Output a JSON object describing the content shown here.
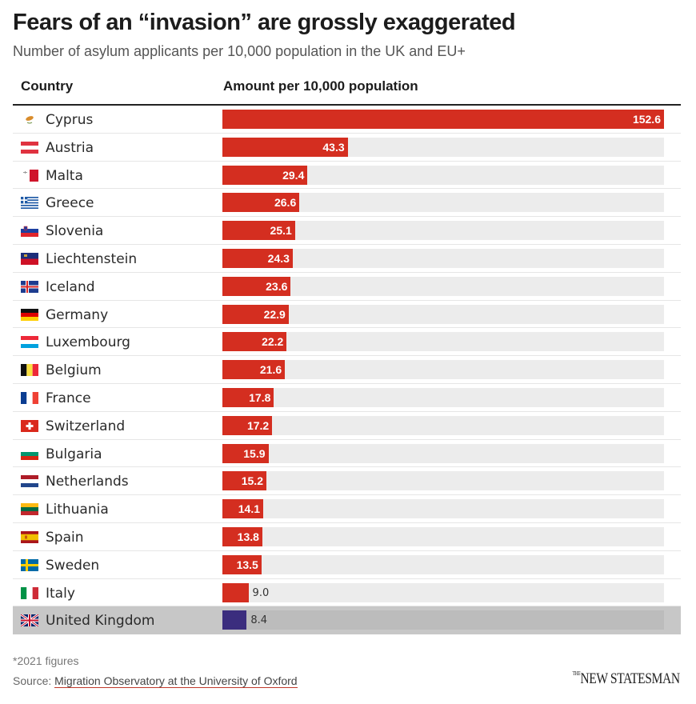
{
  "title": "Fears of an “invasion” are grossly exaggerated",
  "subtitle": "Number of asylum applicants per 10,000 population in the UK and EU+",
  "columns": {
    "country": "Country",
    "amount": "Amount per 10,000 population"
  },
  "colors": {
    "bar": "#d42e20",
    "highlight_bar": "#3b2d7e",
    "track": "#ececec",
    "highlight_track": "#bcbcbc",
    "highlight_row": "#c7c7c7"
  },
  "footnote": "*2021 figures",
  "source_label": "Source:",
  "source_link": "Migration Observatory at the University of Oxford",
  "logo": {
    "prefix": "THE",
    "name": "NEW STATESMAN"
  },
  "chart_data": {
    "type": "bar",
    "orientation": "horizontal",
    "title": "Fears of an “invasion” are grossly exaggerated",
    "subtitle": "Number of asylum applicants per 10,000 population in the UK and EU+",
    "xlabel": "Amount per 10,000 population",
    "ylabel": "Country",
    "xlim": [
      0,
      152.6
    ],
    "grid": false,
    "legend": "none",
    "highlight": "United Kingdom",
    "categories": [
      "Cyprus",
      "Austria",
      "Malta",
      "Greece",
      "Slovenia",
      "Liechtenstein",
      "Iceland",
      "Germany",
      "Luxembourg",
      "Belgium",
      "France",
      "Switzerland",
      "Bulgaria",
      "Netherlands",
      "Lithuania",
      "Spain",
      "Sweden",
      "Italy",
      "United Kingdom"
    ],
    "values": [
      152.6,
      43.3,
      29.4,
      26.6,
      25.1,
      24.3,
      23.6,
      22.9,
      22.2,
      21.6,
      17.8,
      17.2,
      15.9,
      15.2,
      14.1,
      13.8,
      13.5,
      9.0,
      8.4
    ],
    "labels": [
      "152.6",
      "43.3",
      "29.4",
      "26.6",
      "25.1",
      "24.3",
      "23.6",
      "22.9",
      "22.2",
      "21.6",
      "17.8",
      "17.2",
      "15.9",
      "15.2",
      "14.1",
      "13.8",
      "13.5",
      "9.0",
      "8.4"
    ],
    "flags": [
      "cyprus-flag",
      "austria-flag",
      "malta-flag",
      "greece-flag",
      "slovenia-flag",
      "liechtenstein-flag",
      "iceland-flag",
      "germany-flag",
      "luxembourg-flag",
      "belgium-flag",
      "france-flag",
      "switzerland-flag",
      "bulgaria-flag",
      "netherlands-flag",
      "lithuania-flag",
      "spain-flag",
      "sweden-flag",
      "italy-flag",
      "uk-flag"
    ]
  }
}
